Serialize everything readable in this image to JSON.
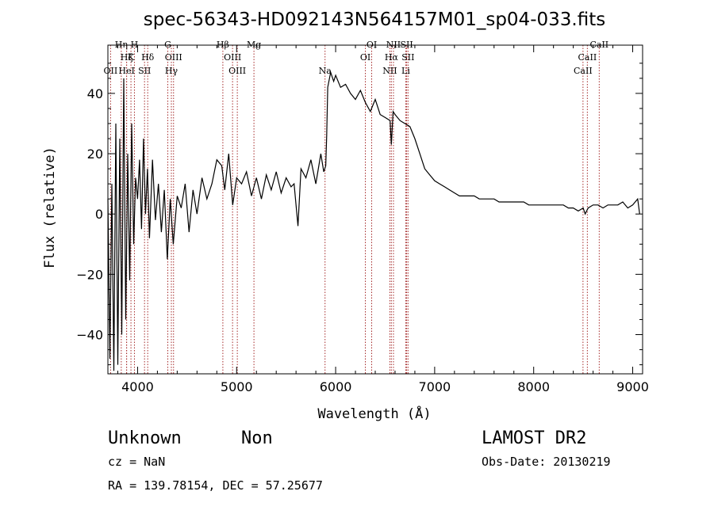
{
  "chart_data": {
    "type": "line",
    "title": "spec-56343-HD092143N564157M01_sp04-033.fits",
    "xlabel": "Wavelength (Å)",
    "ylabel": "Flux (relative)",
    "xlim": [
      3700,
      9100
    ],
    "ylim": [
      -53,
      56
    ],
    "xticks": [
      4000,
      5000,
      6000,
      7000,
      8000,
      9000
    ],
    "xtick_labels": [
      "4000",
      "5000",
      "6000",
      "7000",
      "8000",
      "9000"
    ],
    "yticks": [
      -40,
      -20,
      0,
      20,
      40
    ],
    "ytick_labels": [
      "−40",
      "−20",
      "0",
      "20",
      "40"
    ],
    "grid": false,
    "line_color": "#000000",
    "marker_color": "#a52a2a",
    "series": [
      {
        "x": [
          3700,
          3720,
          3740,
          3760,
          3780,
          3800,
          3820,
          3840,
          3860,
          3880,
          3900,
          3920,
          3940,
          3960,
          3980,
          4000,
          4020,
          4040,
          4060,
          4080,
          4100,
          4120,
          4150,
          4180,
          4210,
          4240,
          4270,
          4300,
          4330,
          4360,
          4400,
          4440,
          4480,
          4520,
          4560,
          4600,
          4650,
          4700,
          4750,
          4800,
          4850,
          4880,
          4920,
          4960,
          5000,
          5050,
          5100,
          5150,
          5200,
          5250,
          5300,
          5350,
          5400,
          5450,
          5500,
          5550,
          5580,
          5620,
          5650,
          5700,
          5750,
          5800,
          5850,
          5880,
          5900,
          5910,
          5920,
          5950,
          5980,
          6000,
          6050,
          6100,
          6150,
          6200,
          6250,
          6300,
          6350,
          6400,
          6450,
          6500,
          6550,
          6563,
          6580,
          6600,
          6650,
          6700,
          6750,
          6800,
          6850,
          6900,
          6950,
          7000,
          7050,
          7100,
          7150,
          7200,
          7250,
          7300,
          7350,
          7400,
          7450,
          7500,
          7550,
          7600,
          7650,
          7700,
          7750,
          7800,
          7850,
          7900,
          7950,
          8000,
          8050,
          8100,
          8150,
          8200,
          8250,
          8300,
          8350,
          8400,
          8450,
          8500,
          8520,
          8550,
          8600,
          8650,
          8700,
          8750,
          8800,
          8850,
          8900,
          8950,
          9000,
          9050,
          9070
        ],
        "y": [
          5,
          -48,
          10,
          -52,
          30,
          -50,
          25,
          -40,
          45,
          -35,
          20,
          -22,
          30,
          -10,
          12,
          5,
          18,
          -5,
          25,
          0,
          15,
          -8,
          18,
          -2,
          10,
          -6,
          8,
          -15,
          5,
          -10,
          6,
          2,
          10,
          -6,
          8,
          0,
          12,
          5,
          10,
          18,
          16,
          8,
          20,
          3,
          12,
          10,
          14,
          6,
          12,
          5,
          13,
          8,
          14,
          7,
          12,
          9,
          10,
          -4,
          15,
          12,
          18,
          10,
          20,
          14,
          16,
          26,
          42,
          47,
          44,
          46,
          42,
          43,
          40,
          38,
          41,
          37,
          34,
          38,
          33,
          32,
          31,
          23,
          34,
          33,
          31,
          30,
          29,
          25,
          20,
          15,
          13,
          11,
          10,
          9,
          8,
          7,
          6,
          6,
          6,
          6,
          5,
          5,
          5,
          5,
          4,
          4,
          4,
          4,
          4,
          4,
          3,
          3,
          3,
          3,
          3,
          3,
          3,
          3,
          2,
          2,
          1,
          2,
          0,
          2,
          3,
          3,
          2,
          3,
          3,
          3,
          4,
          2,
          3,
          5,
          0
        ]
      }
    ],
    "lines": [
      {
        "label": "Hη",
        "x": 3835,
        "row": 0
      },
      {
        "label": "H",
        "x": 3968,
        "row": 0
      },
      {
        "label": "Hζ",
        "x": 3889,
        "row": 1
      },
      {
        "label": "K",
        "x": 3933,
        "row": 1
      },
      {
        "label": "Hδ",
        "x": 4102,
        "row": 1
      },
      {
        "label": "OII",
        "x": 3727,
        "row": 2
      },
      {
        "label": "HeI",
        "x": 3889,
        "row": 2
      },
      {
        "label": "SII",
        "x": 4070,
        "row": 2
      },
      {
        "label": "G",
        "x": 4305,
        "row": 0
      },
      {
        "label": "OIII",
        "x": 4363,
        "row": 1
      },
      {
        "label": "Hγ",
        "x": 4341,
        "row": 2
      },
      {
        "label": "Hβ",
        "x": 4861,
        "row": 0
      },
      {
        "label": "Mg",
        "x": 5175,
        "row": 0
      },
      {
        "label": "OIII",
        "x": 4959,
        "row": 1
      },
      {
        "label": "OIII",
        "x": 5007,
        "row": 2
      },
      {
        "label": "Na",
        "x": 5893,
        "row": 2
      },
      {
        "label": "OI",
        "x": 6364,
        "row": 0
      },
      {
        "label": "OI",
        "x": 6300,
        "row": 1
      },
      {
        "label": "NII",
        "x": 6584,
        "row": 0
      },
      {
        "label": "SII",
        "x": 6717,
        "row": 0
      },
      {
        "label": "Hα",
        "x": 6563,
        "row": 1
      },
      {
        "label": "SII",
        "x": 6731,
        "row": 1
      },
      {
        "label": "NII",
        "x": 6548,
        "row": 2
      },
      {
        "label": "Li",
        "x": 6708,
        "row": 2
      },
      {
        "label": "CaII",
        "x": 8662,
        "row": 0
      },
      {
        "label": "CaII",
        "x": 8542,
        "row": 1
      },
      {
        "label": "CaII",
        "x": 8498,
        "row": 2
      }
    ]
  },
  "footer": {
    "object_class": "Unknown",
    "object_subclass": "Non",
    "survey": "LAMOST DR2",
    "cz": "cz = NaN",
    "obs_date": "Obs-Date: 20130219",
    "coords": "RA = 139.78154, DEC =  57.25677"
  }
}
